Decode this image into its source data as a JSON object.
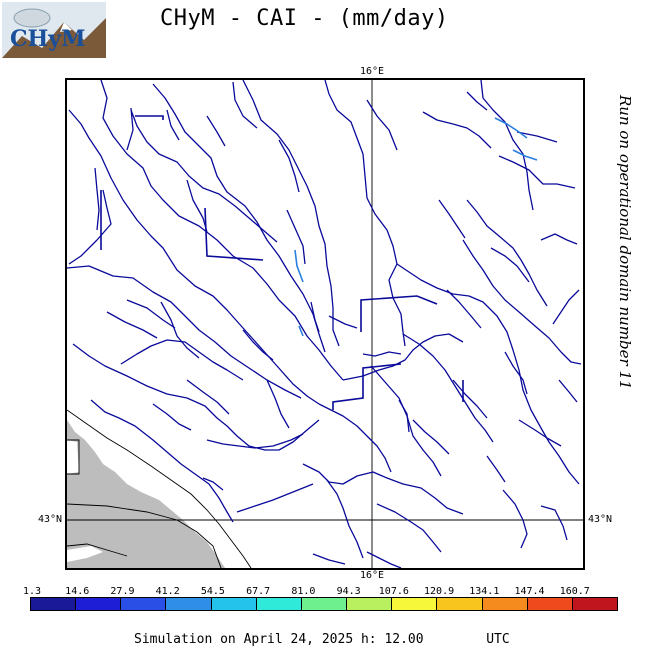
{
  "header": {
    "title": "CHyM - CAI - (mm/day)",
    "logo_text": "CHyM"
  },
  "map": {
    "lon_label_top": "16°E",
    "lon_label_bottom": "16°E",
    "lat_label_left": "43°N",
    "lat_label_right": "43°N",
    "river_color": "#0a0a9a",
    "river_color_light": "#2a7fe0",
    "land_shade_color": "#bdbdbd"
  },
  "side_note": "Run on operational domain number 11",
  "scale": {
    "labels": [
      "1.3",
      "14.6",
      "27.9",
      "41.2",
      "54.5",
      "67.7",
      "81.0",
      "94.3",
      "107.6",
      "120.9",
      "134.1",
      "147.4",
      "160.7"
    ],
    "colors": [
      "#1a1a99",
      "#1e1ed6",
      "#2a4fe6",
      "#2f8fe8",
      "#23c3ec",
      "#2fe9d9",
      "#6ef08e",
      "#b9f060",
      "#f6f63a",
      "#f8c51e",
      "#f58a1e",
      "#ee4a1e",
      "#c0141e"
    ]
  },
  "footer": {
    "simulation_text": "Simulation on April 24, 2025 h: 12.00",
    "timezone": "UTC"
  }
}
